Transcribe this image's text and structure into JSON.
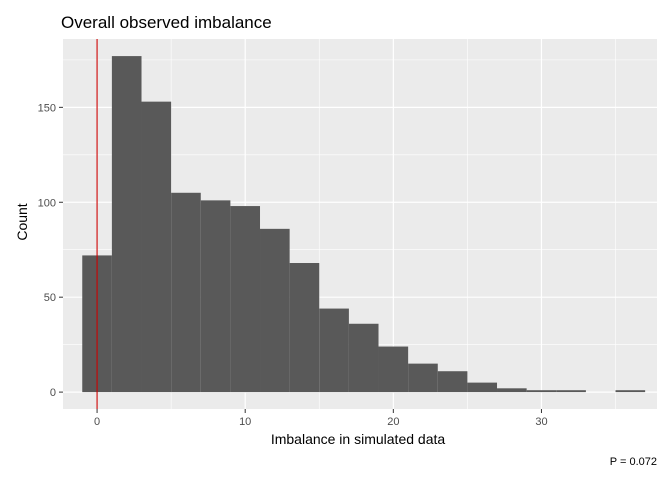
{
  "chart_data": {
    "type": "bar",
    "title": "Overall observed imbalance",
    "xlabel": "Imbalance in simulated data",
    "ylabel": "Count",
    "caption": "P = 0.072",
    "x": [
      0,
      2,
      4,
      6,
      8,
      10,
      12,
      14,
      16,
      18,
      20,
      22,
      24,
      26,
      28,
      30,
      32,
      36
    ],
    "values": [
      72,
      177,
      153,
      105,
      101,
      98,
      86,
      68,
      44,
      36,
      24,
      15,
      11,
      5,
      2,
      1,
      1,
      1
    ],
    "xlim": [
      -2.3,
      37.8
    ],
    "ylim": [
      -8.9,
      186
    ],
    "x_ticks": [
      0,
      10,
      20,
      30
    ],
    "y_ticks": [
      0,
      50,
      100,
      150
    ],
    "observed_value": 0,
    "grid": true,
    "colors": {
      "bar": "#595959",
      "panel": "#ebebeb",
      "grid": "#ffffff",
      "observed_line": "#cc0000"
    }
  }
}
